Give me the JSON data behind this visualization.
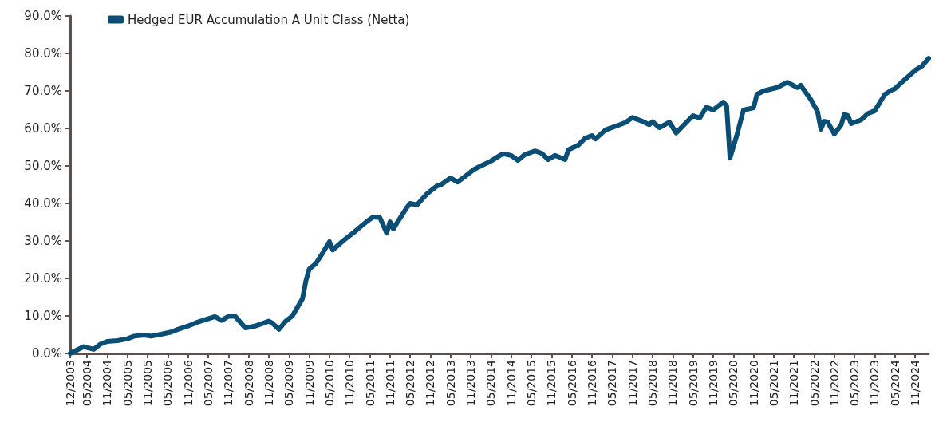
{
  "chart_data": {
    "type": "line",
    "legend": "top left",
    "marker": "none",
    "line_style": "solid",
    "xlim": [
      "2003-12",
      "2025-03"
    ],
    "xticks": [
      {
        "value": "2003-12",
        "label": "12/2003"
      },
      {
        "value": "2004-05",
        "label": "05/2004"
      },
      {
        "value": "2004-11",
        "label": "11/2004"
      },
      {
        "value": "2005-05",
        "label": "05/2005"
      },
      {
        "value": "2005-11",
        "label": "11/2005"
      },
      {
        "value": "2006-05",
        "label": "05/2006"
      },
      {
        "value": "2006-11",
        "label": "11/2006"
      },
      {
        "value": "2007-05",
        "label": "05/2007"
      },
      {
        "value": "2007-11",
        "label": "11/2007"
      },
      {
        "value": "2008-05",
        "label": "05/2008"
      },
      {
        "value": "2008-11",
        "label": "11/2008"
      },
      {
        "value": "2009-05",
        "label": "05/2009"
      },
      {
        "value": "2009-11",
        "label": "11/2009"
      },
      {
        "value": "2010-05",
        "label": "05/2010"
      },
      {
        "value": "2010-11",
        "label": "11/2010"
      },
      {
        "value": "2011-05",
        "label": "05/2011"
      },
      {
        "value": "2011-11",
        "label": "11/2011"
      },
      {
        "value": "2012-05",
        "label": "05/2012"
      },
      {
        "value": "2012-11",
        "label": "11/2012"
      },
      {
        "value": "2013-05",
        "label": "05/2013"
      },
      {
        "value": "2013-11",
        "label": "11/2013"
      },
      {
        "value": "2014-05",
        "label": "05/2014"
      },
      {
        "value": "2014-11",
        "label": "11/2014"
      },
      {
        "value": "2015-05",
        "label": "05/2015"
      },
      {
        "value": "2015-11",
        "label": "11/2015"
      },
      {
        "value": "2016-05",
        "label": "05/2016"
      },
      {
        "value": "2016-11",
        "label": "11/2016"
      },
      {
        "value": "2017-05",
        "label": "05/2017"
      },
      {
        "value": "2017-11",
        "label": "11/2017"
      },
      {
        "value": "2018-05",
        "label": "05/2018"
      },
      {
        "value": "2018-11",
        "label": "11/2018"
      },
      {
        "value": "2019-05",
        "label": "05/2019"
      },
      {
        "value": "2019-11",
        "label": "11/2019"
      },
      {
        "value": "2020-05",
        "label": "05/2020"
      },
      {
        "value": "2020-11",
        "label": "11/2020"
      },
      {
        "value": "2021-05",
        "label": "05/2021"
      },
      {
        "value": "2021-11",
        "label": "11/2021"
      },
      {
        "value": "2022-05",
        "label": "05/2022"
      },
      {
        "value": "2022-11",
        "label": "11/2022"
      },
      {
        "value": "2023-05",
        "label": "05/2023"
      },
      {
        "value": "2023-11",
        "label": "11/2023"
      },
      {
        "value": "2024-05",
        "label": "05/2024"
      },
      {
        "value": "2024-11",
        "label": "11/2024"
      }
    ],
    "ylim": [
      0,
      90
    ],
    "yticks": [
      {
        "value": 0,
        "label": "0.0%"
      },
      {
        "value": 10,
        "label": "10.0%"
      },
      {
        "value": 20,
        "label": "20.0%"
      },
      {
        "value": 30,
        "label": "30.0%"
      },
      {
        "value": 40,
        "label": "40.0%"
      },
      {
        "value": 50,
        "label": "50.0%"
      },
      {
        "value": 60,
        "label": "60.0%"
      },
      {
        "value": 70,
        "label": "70.0%"
      },
      {
        "value": 80,
        "label": "80.0%"
      },
      {
        "value": 90,
        "label": "90.0%"
      }
    ],
    "series": [
      {
        "name": "Hedged EUR Accumulation A Unit Class (Netta)",
        "color": "#0a4d75",
        "x": [
          "2003-12",
          "2004-04",
          "2004-07",
          "2004-09",
          "2004-11",
          "2005-02",
          "2005-05",
          "2005-07",
          "2005-10",
          "2005-12",
          "2006-03",
          "2006-06",
          "2006-08",
          "2006-11",
          "2007-02",
          "2007-07",
          "2007-09",
          "2007-11",
          "2008-01",
          "2008-04",
          "2008-07",
          "2008-11",
          "2008-12",
          "2009-02",
          "2009-04",
          "2009-06",
          "2009-09",
          "2009-10",
          "2009-11",
          "2010-01",
          "2010-03",
          "2010-05",
          "2010-06",
          "2010-09",
          "2010-12",
          "2011-04",
          "2011-06",
          "2011-08",
          "2011-10",
          "2011-11",
          "2011-12",
          "2012-01",
          "2012-04",
          "2012-05",
          "2012-07",
          "2012-10",
          "2013-01",
          "2013-02",
          "2013-05",
          "2013-07",
          "2013-09",
          "2013-12",
          "2014-02",
          "2014-05",
          "2014-08",
          "2014-09",
          "2014-11",
          "2015-01",
          "2015-03",
          "2015-06",
          "2015-08",
          "2015-10",
          "2015-12",
          "2016-03",
          "2016-04",
          "2016-07",
          "2016-09",
          "2016-11",
          "2016-12",
          "2017-03",
          "2017-07",
          "2017-09",
          "2017-11",
          "2018-02",
          "2018-04",
          "2018-05",
          "2018-07",
          "2018-10",
          "2018-12",
          "2019-05",
          "2019-07",
          "2019-09",
          "2019-11",
          "2020-02",
          "2020-03",
          "2020-04",
          "2020-06",
          "2020-08",
          "2020-11",
          "2020-12",
          "2021-02",
          "2021-06",
          "2021-09",
          "2021-12",
          "2022-01",
          "2022-04",
          "2022-06",
          "2022-07",
          "2022-08",
          "2022-09",
          "2022-11",
          "2023-01",
          "2023-02",
          "2023-03",
          "2023-04",
          "2023-07",
          "2023-09",
          "2023-11",
          "2024-02",
          "2024-04",
          "2024-05",
          "2024-07",
          "2024-10",
          "2024-11",
          "2025-01",
          "2025-03"
        ],
        "values": [
          0.0,
          1.8,
          1.1,
          2.5,
          3.2,
          3.4,
          3.9,
          4.6,
          4.9,
          4.6,
          5.1,
          5.7,
          6.4,
          7.3,
          8.4,
          9.8,
          8.8,
          9.9,
          9.9,
          6.8,
          7.3,
          8.6,
          8.1,
          6.4,
          8.6,
          10.0,
          14.6,
          19.3,
          22.5,
          24.0,
          26.8,
          29.8,
          27.6,
          30.0,
          32.1,
          35.1,
          36.4,
          36.2,
          32.1,
          35.1,
          33.2,
          34.7,
          38.9,
          40.0,
          39.6,
          42.6,
          44.7,
          44.9,
          46.8,
          45.7,
          47.0,
          49.1,
          50.0,
          51.3,
          53.0,
          53.2,
          52.8,
          51.5,
          53.0,
          54.0,
          53.4,
          51.7,
          52.8,
          51.7,
          54.3,
          55.6,
          57.4,
          58.1,
          57.2,
          59.6,
          60.9,
          61.6,
          62.9,
          61.9,
          61.0,
          61.8,
          60.2,
          61.7,
          58.8,
          63.4,
          62.8,
          65.7,
          64.9,
          67.0,
          66.0,
          52.1,
          58.1,
          64.9,
          65.5,
          69.1,
          70.0,
          70.9,
          72.3,
          70.9,
          71.5,
          67.7,
          64.5,
          59.8,
          61.9,
          61.7,
          58.5,
          60.9,
          63.8,
          63.4,
          61.3,
          62.3,
          64.0,
          64.7,
          69.1,
          70.2,
          70.6,
          72.3,
          74.7,
          75.5,
          76.6,
          78.7
        ]
      }
    ]
  }
}
